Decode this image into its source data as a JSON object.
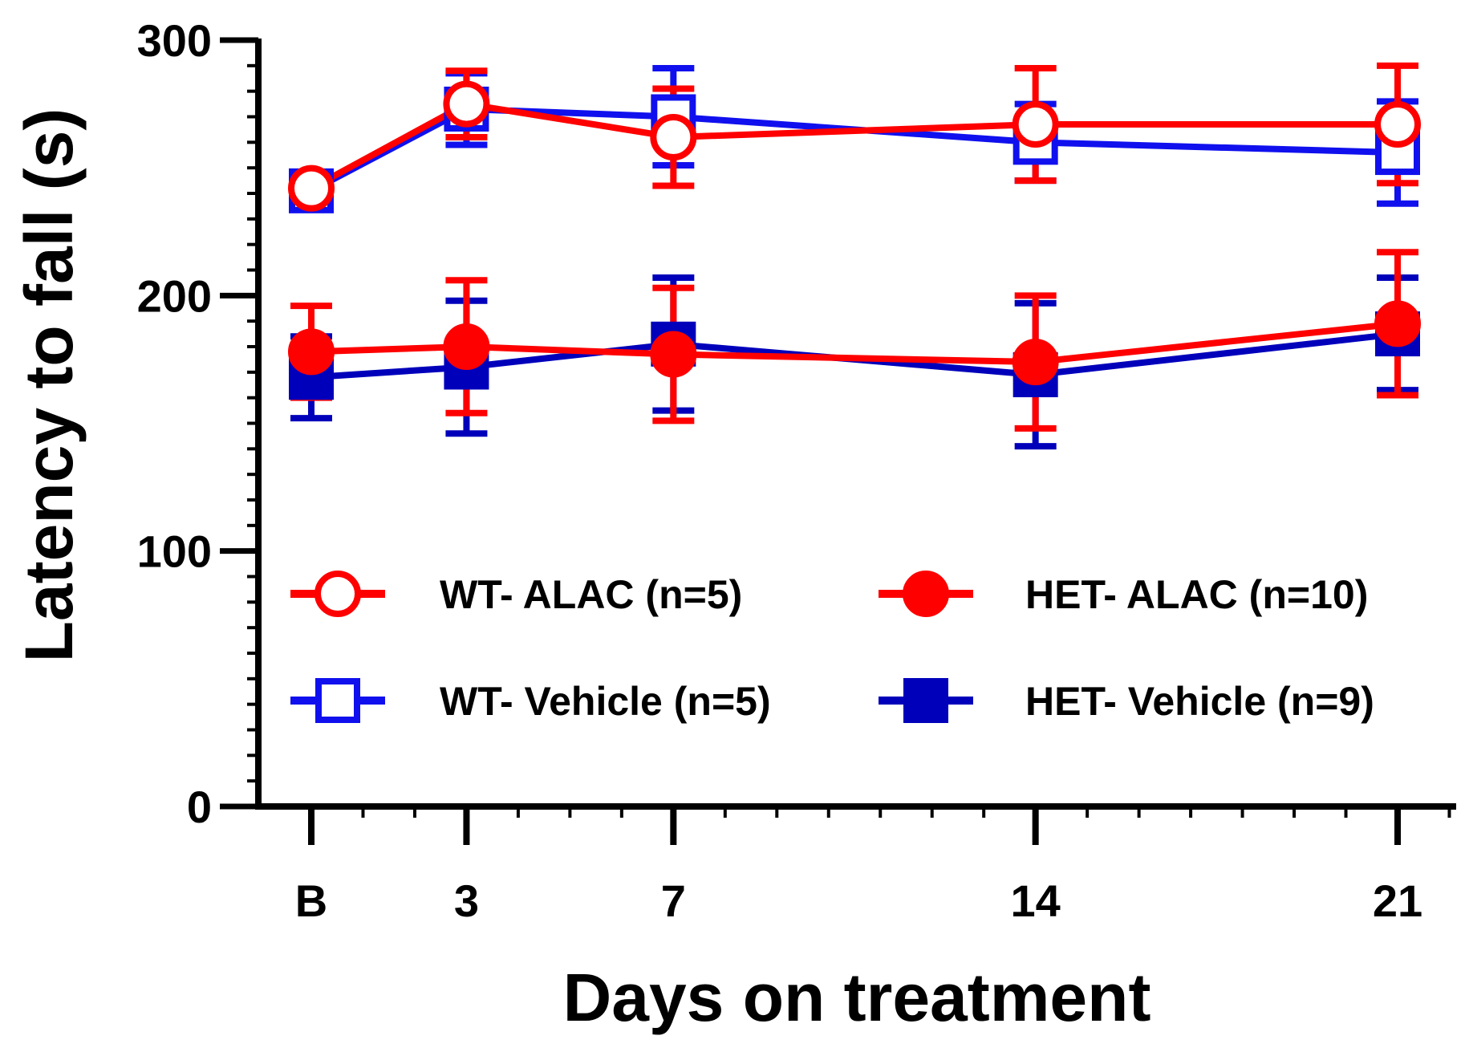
{
  "chart_data": {
    "type": "line",
    "title": "",
    "xlabel": "Days on treatment",
    "ylabel": "Latency to fall (s)",
    "categories": [
      "B",
      "3",
      "7",
      "14",
      "21"
    ],
    "x": [
      0,
      3,
      7,
      14,
      21
    ],
    "ylim": [
      0,
      300
    ],
    "yticks": [
      0,
      100,
      200,
      300
    ],
    "grid": false,
    "legend": "lower inside, two columns",
    "series": [
      {
        "name": "WT- Vehicle (n=5)",
        "color": "#1010ee",
        "marker": "square-open",
        "values": [
          241,
          273,
          270,
          260,
          256
        ],
        "errors": [
          5,
          14,
          19,
          15,
          20
        ]
      },
      {
        "name": "WT- ALAC (n=5)",
        "color": "#ff0000",
        "marker": "circle-open",
        "values": [
          242,
          275,
          262,
          267,
          267
        ],
        "errors": [
          3,
          13,
          19,
          22,
          23
        ]
      },
      {
        "name": "HET- Vehicle (n=9)",
        "color": "#0000bb",
        "marker": "square-filled",
        "values": [
          168,
          172,
          181,
          169,
          185
        ],
        "errors": [
          16,
          26,
          26,
          28,
          22
        ]
      },
      {
        "name": "HET- ALAC (n=10)",
        "color": "#ff0000",
        "marker": "circle-filled",
        "values": [
          178,
          180,
          177,
          174,
          189
        ],
        "errors": [
          18,
          26,
          26,
          26,
          28
        ]
      }
    ]
  }
}
